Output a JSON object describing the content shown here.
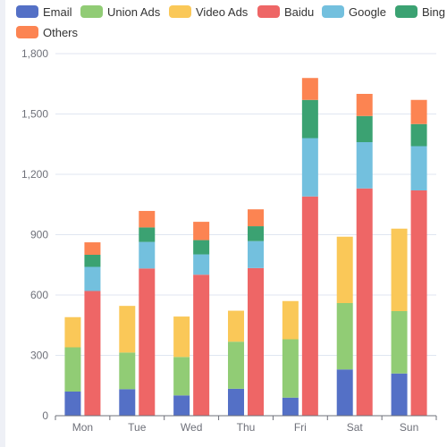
{
  "chart_data": {
    "type": "bar",
    "title": "",
    "xlabel": "",
    "ylabel": "",
    "categories": [
      "Mon",
      "Tue",
      "Wed",
      "Thu",
      "Fri",
      "Sat",
      "Sun"
    ],
    "ylim": [
      0,
      1800
    ],
    "y_ticks": [
      "0",
      "300",
      "600",
      "900",
      "1,200",
      "1,500",
      "1,800"
    ],
    "grid": true,
    "legend_position": "top",
    "series": [
      {
        "name": "Email",
        "stack": "A",
        "color": "#5470c6",
        "values": [
          120,
          132,
          101,
          134,
          90,
          230,
          210
        ]
      },
      {
        "name": "Union Ads",
        "stack": "A",
        "color": "#91cc75",
        "values": [
          220,
          182,
          191,
          234,
          290,
          330,
          310
        ]
      },
      {
        "name": "Video Ads",
        "stack": "A",
        "color": "#fac858",
        "values": [
          150,
          232,
          201,
          154,
          190,
          330,
          410
        ]
      },
      {
        "name": "Baidu",
        "stack": "B",
        "color": "#ee6666",
        "values": [
          620,
          732,
          701,
          734,
          1090,
          1130,
          1120
        ]
      },
      {
        "name": "Google",
        "stack": "B",
        "color": "#73c0de",
        "values": [
          120,
          132,
          101,
          134,
          290,
          230,
          220
        ]
      },
      {
        "name": "Bing",
        "stack": "B",
        "color": "#3ba272",
        "values": [
          60,
          72,
          71,
          74,
          190,
          130,
          110
        ]
      },
      {
        "name": "Others",
        "stack": "B",
        "color": "#fc8452",
        "values": [
          62,
          82,
          91,
          84,
          109,
          110,
          120
        ]
      }
    ],
    "legend_labels": [
      "Email",
      "Union Ads",
      "Video Ads",
      "Baidu",
      "Google",
      "Bing",
      "Others"
    ]
  }
}
